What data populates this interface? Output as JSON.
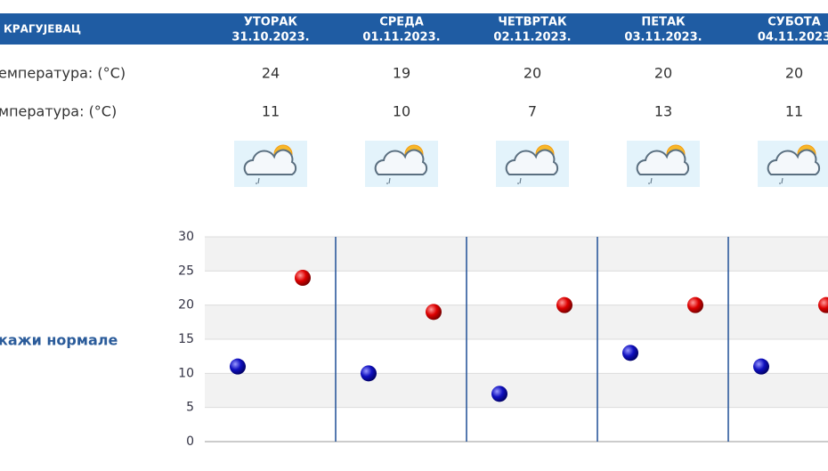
{
  "header": {
    "city": "КРАГУЈЕВАЦ"
  },
  "rows": {
    "max_label": "емпература: (°C)",
    "min_label": "мпература: (°C)"
  },
  "days": [
    {
      "name": "УТОРАК",
      "date": "31.10.2023.",
      "max": 24,
      "min": 11
    },
    {
      "name": "СРЕДА",
      "date": "01.11.2023.",
      "max": 19,
      "min": 10
    },
    {
      "name": "ЧЕТВРТАК",
      "date": "02.11.2023.",
      "max": 20,
      "min": 7
    },
    {
      "name": "ПЕТАК",
      "date": "03.11.2023.",
      "max": 20,
      "min": 13
    },
    {
      "name": "СУБОТА",
      "date": "04.11.2023",
      "max": 20,
      "min": 11
    }
  ],
  "toggle": "кажи нормале",
  "chart": {
    "ylim": [
      0,
      30
    ],
    "yticks": [
      0,
      5,
      10,
      15,
      20,
      25,
      30
    ],
    "max_color": "#cc0000",
    "min_color": "#1010c0",
    "grid": true
  }
}
